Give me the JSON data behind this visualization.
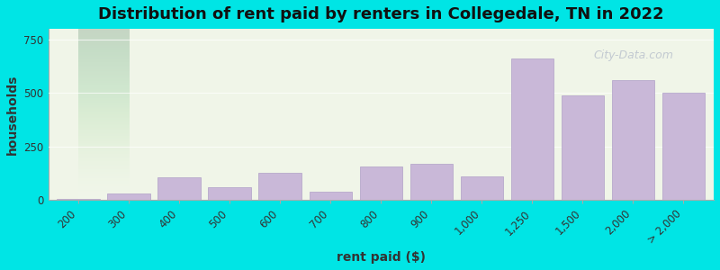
{
  "categories": [
    "200",
    "300",
    "400",
    "500",
    "600",
    "700",
    "800",
    "900",
    "1,000",
    "1,250",
    "1,500",
    "2,000",
    "> 2,000"
  ],
  "values": [
    5,
    30,
    105,
    58,
    125,
    38,
    155,
    170,
    108,
    660,
    490,
    560,
    500
  ],
  "bar_color": "#c9b8d8",
  "bar_edge_color": "#b0a0c8",
  "background_color": "#00e5e5",
  "plot_bg_gradient_top": "#f0f5e8",
  "plot_bg_gradient_bottom": "#e8f5f0",
  "title": "Distribution of rent paid by renters in Collegedale, TN in 2022",
  "xlabel": "rent paid ($)",
  "ylabel": "households",
  "ylim": [
    0,
    800
  ],
  "yticks": [
    0,
    250,
    500,
    750
  ],
  "title_fontsize": 13,
  "axis_label_fontsize": 10,
  "tick_fontsize": 8.5,
  "watermark_text": "City-Data.com"
}
